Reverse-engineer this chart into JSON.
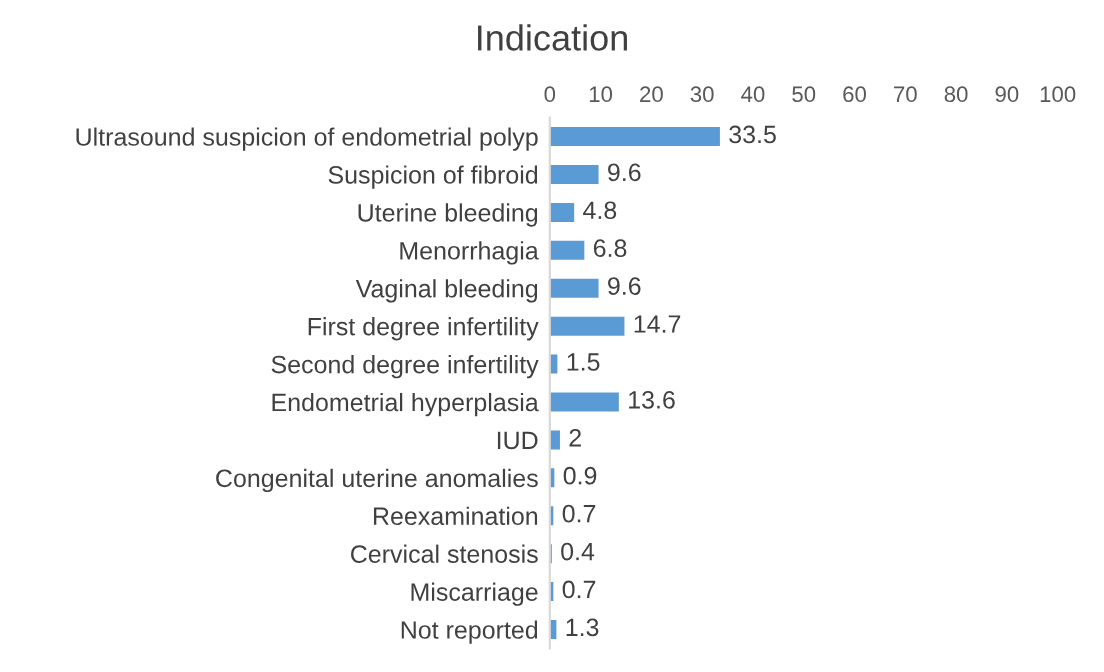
{
  "chart_data": {
    "type": "bar",
    "orientation": "horizontal",
    "title": "Indication",
    "categories": [
      "Ultrasound suspicion of endometrial polyp",
      "Suspicion of fibroid",
      "Uterine bleeding",
      "Menorrhagia",
      "Vaginal bleeding",
      "First degree infertility",
      "Second degree infertility",
      "Endometrial hyperplasia",
      "IUD",
      "Congenital uterine anomalies",
      "Reexamination",
      "Cervical stenosis",
      "Miscarriage",
      "Not reported"
    ],
    "values": [
      33.5,
      9.6,
      4.8,
      6.8,
      9.6,
      14.7,
      1.5,
      13.6,
      2,
      0.9,
      0.7,
      0.4,
      0.7,
      1.3
    ],
    "color": "#5b9bd5",
    "xlim": [
      0,
      100
    ],
    "xticks": [
      0,
      10,
      20,
      30,
      40,
      50,
      60,
      70,
      80,
      90,
      100
    ],
    "data_labels": true,
    "grid": false,
    "legend": false
  }
}
